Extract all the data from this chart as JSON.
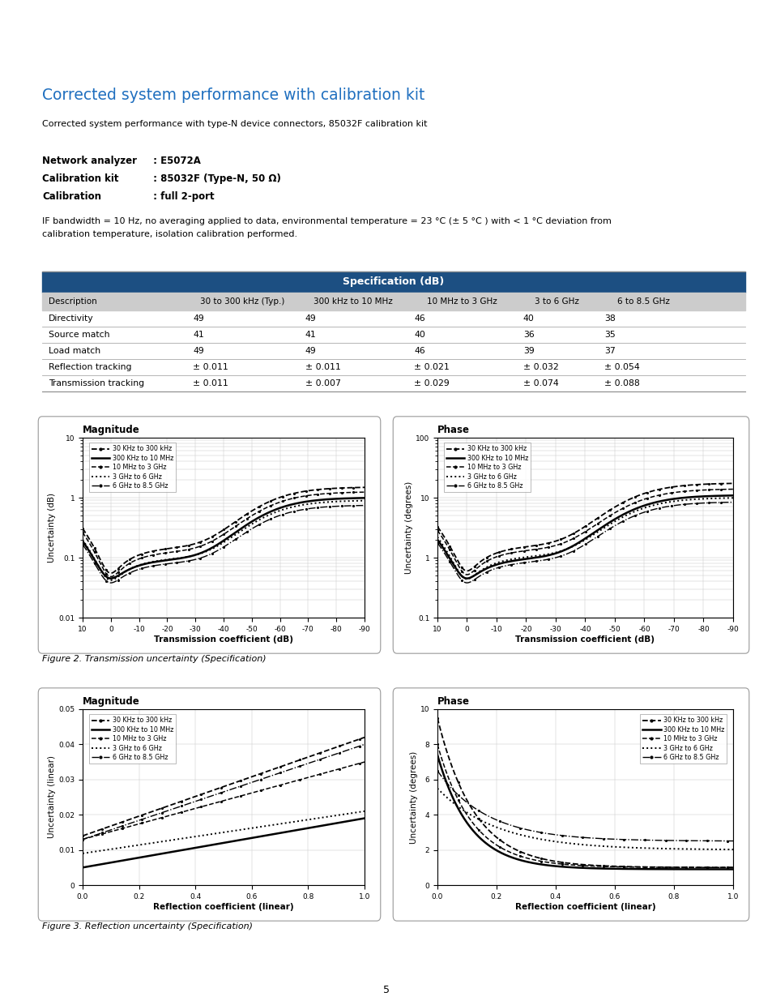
{
  "title": "Corrected system performance with calibration kit",
  "title_color": "#1F6FBF",
  "subtitle": "Corrected system performance with type-N device connectors, 85032F calibration kit",
  "note_line1": "IF bandwidth = 10 Hz, no averaging applied to data, environmental temperature = 23 °C (± 5 °C ) with < 1 °C deviation from",
  "note_line2": "calibration temperature, isolation calibration performed.",
  "table_header_bg": "#1C4F82",
  "table_header_fg": "#FFFFFF",
  "table_subheader_bg": "#CCCCCC",
  "table_col_header": "Specification (dB)",
  "table_columns": [
    "Description",
    "30 to 300 kHz (Typ.)",
    "300 kHz to 10 MHz",
    "10 MHz to 3 GHz",
    "3 to 6 GHz",
    "6 to 8.5 GHz"
  ],
  "table_rows": [
    [
      "Directivity",
      "49",
      "49",
      "46",
      "40",
      "38"
    ],
    [
      "Source match",
      "41",
      "41",
      "40",
      "36",
      "35"
    ],
    [
      "Load match",
      "49",
      "49",
      "46",
      "39",
      "37"
    ],
    [
      "Reflection tracking",
      "± 0.011",
      "± 0.011",
      "± 0.021",
      "± 0.032",
      "± 0.054"
    ],
    [
      "Transmission tracking",
      "± 0.011",
      "± 0.007",
      "± 0.029",
      "± 0.074",
      "± 0.088"
    ]
  ],
  "fig2_caption": "Figure 2. Transmission uncertainty (Specification)",
  "fig3_caption": "Figure 3. Reflection uncertainty (Specification)",
  "page_number": "5",
  "legend_labels": [
    "30 KHz to 300 kHz",
    "300 KHz to 10 MHz",
    "10 MHz to 3 GHz",
    "3 GHz to 6 GHz",
    "6 GHz to 8.5 GHz"
  ]
}
